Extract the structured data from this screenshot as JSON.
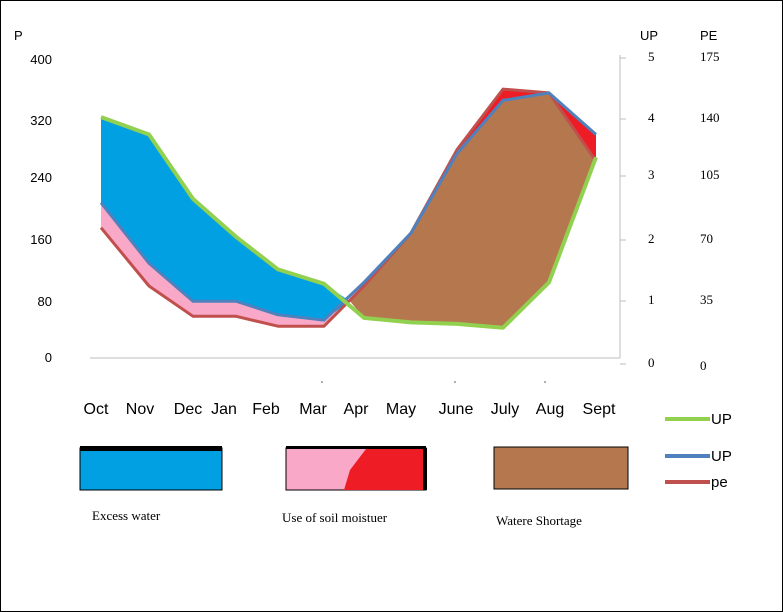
{
  "chart_data": {
    "type": "area",
    "x_categories": [
      "Oct",
      "Nov",
      "Dec",
      "Jan",
      "Feb",
      "Mar",
      "Apr",
      "May",
      "June",
      "July",
      "Aug",
      "Sept"
    ],
    "axes": {
      "left": {
        "title": "P",
        "ticks": [
          "400",
          "320",
          "240",
          "160",
          "80",
          "0"
        ],
        "range": [
          0,
          400
        ]
      },
      "right1": {
        "title": "UP",
        "ticks": [
          "5",
          "4",
          "3",
          "2",
          "1",
          "0"
        ],
        "range": [
          0,
          5
        ]
      },
      "right2": {
        "title": "PE",
        "ticks": [
          "175",
          "140",
          "105",
          "70",
          "35",
          "0"
        ],
        "range": [
          0,
          175
        ]
      }
    },
    "series": [
      {
        "name": "UP",
        "color": "#92d050",
        "axis": "left",
        "values": [
          318,
          295,
          210,
          160,
          117,
          98,
          53,
          47,
          45,
          40,
          100,
          265
        ]
      },
      {
        "name": "UP",
        "color": "#4f81bd",
        "axis": "left",
        "values": [
          205,
          125,
          75,
          75,
          57,
          50,
          100,
          165,
          270,
          340,
          350,
          295
        ]
      },
      {
        "name": "pe",
        "color": "#c0504d",
        "axis": "left",
        "values": [
          172,
          95,
          55,
          55,
          42,
          42,
          95,
          165,
          275,
          355,
          350,
          260
        ]
      }
    ],
    "fill_colors": {
      "excess_water": "#00a0e3",
      "soil_moisture_use_light": "#f9a8c8",
      "soil_moisture_use_dark": "#ee1c25",
      "water_shortage": "#b5774e"
    },
    "legend": {
      "position": "right-bottom",
      "entries": [
        "UP",
        "UP",
        "pe"
      ]
    },
    "captions": [
      "Excess  water",
      "Use of soil moistuer",
      "Watere  Shortage"
    ],
    "grid": false
  }
}
